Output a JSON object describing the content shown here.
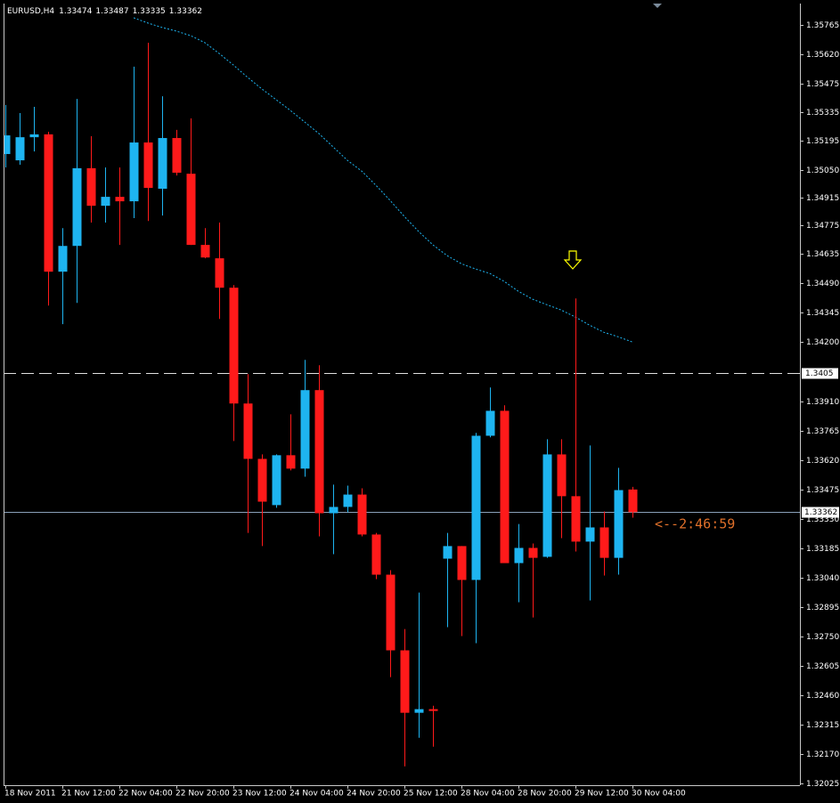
{
  "chart_data": {
    "type": "candlestick",
    "title": "EURUSD,H4",
    "categories": [
      "18 Nov 2011",
      null,
      null,
      null,
      "21 Nov 12:00",
      null,
      null,
      null,
      "22 Nov 04:00",
      null,
      null,
      null,
      "22 Nov 20:00",
      null,
      null,
      null,
      "23 Nov 12:00",
      null,
      null,
      null,
      "24 Nov 04:00",
      null,
      null,
      null,
      "24 Nov 20:00",
      null,
      null,
      null,
      "25 Nov 12:00",
      null,
      null,
      null,
      "28 Nov 04:00",
      null,
      null,
      null,
      "28 Nov 20:00",
      null,
      null,
      null,
      "29 Nov 12:00",
      null,
      null,
      null,
      "30 Nov 04:00"
    ],
    "open": [
      1.35128,
      1.35097,
      1.35211,
      1.35225,
      1.34548,
      1.34675,
      1.35058,
      1.34873,
      1.34917,
      1.34895,
      1.35185,
      1.34957,
      1.35207,
      1.35031,
      1.3468,
      1.34614,
      1.34469,
      1.33898,
      1.33625,
      1.33397,
      1.33643,
      1.33577,
      1.33964,
      1.33357,
      1.33388,
      1.33449,
      1.33252,
      1.33054,
      1.32681,
      1.32373,
      1.32391,
      1.33133,
      1.33195,
      1.33028,
      1.33739,
      1.33862,
      1.33111,
      1.33186,
      1.33142,
      1.33647,
      1.33441,
      1.33217,
      1.33287,
      1.33137,
      1.33474
    ],
    "high": [
      1.3537,
      1.3533,
      1.35361,
      1.35238,
      1.34763,
      1.354,
      1.35216,
      1.35062,
      1.35062,
      1.35559,
      1.35677,
      1.35413,
      1.35247,
      1.35304,
      1.34763,
      1.3479,
      1.34482,
      1.34043,
      1.33647,
      1.33647,
      1.33845,
      1.34113,
      1.34087,
      1.33498,
      1.33493,
      1.3348,
      1.3326,
      1.33076,
      1.32786,
      1.32966,
      1.32408,
      1.3326,
      1.33195,
      1.33753,
      1.33977,
      1.33889,
      1.33304,
      1.33208,
      1.33722,
      1.33722,
      1.34416,
      1.33691,
      1.33366,
      1.33581,
      1.33487
    ],
    "low": [
      1.35062,
      1.35075,
      1.35141,
      1.34381,
      1.34289,
      1.34394,
      1.3479,
      1.3479,
      1.3468,
      1.34812,
      1.34798,
      1.34825,
      1.35022,
      1.3468,
      1.34614,
      1.34315,
      1.33713,
      1.3326,
      1.33195,
      1.33384,
      1.33568,
      1.33537,
      1.33243,
      1.33155,
      1.33362,
      1.33243,
      1.33032,
      1.32549,
      1.32109,
      1.3225,
      1.32206,
      1.32795,
      1.32751,
      1.32716,
      1.33731,
      1.33111,
      1.32918,
      1.32843,
      1.33137,
      1.33234,
      1.33168,
      1.32927,
      1.3305,
      1.33054,
      1.33335
    ],
    "close": [
      1.3522,
      1.35211,
      1.35225,
      1.34548,
      1.34675,
      1.35058,
      1.34873,
      1.34917,
      1.34895,
      1.35185,
      1.34961,
      1.35207,
      1.35036,
      1.3468,
      1.34618,
      1.34469,
      1.33898,
      1.33625,
      1.33414,
      1.33643,
      1.33577,
      1.33964,
      1.33357,
      1.33388,
      1.33449,
      1.33252,
      1.33054,
      1.32681,
      1.32373,
      1.32391,
      1.32382,
      1.33195,
      1.33028,
      1.33739,
      1.33862,
      1.33111,
      1.33186,
      1.33137,
      1.33647,
      1.33441,
      1.33217,
      1.33287,
      1.33137,
      1.33471,
      1.33362
    ],
    "up_color": "#1eb4f0",
    "down_color": "#ff1a1a",
    "moving_average": {
      "color": "#1eb4f0",
      "values": [
        null,
        null,
        null,
        null,
        null,
        null,
        null,
        null,
        null,
        1.358,
        1.35774,
        1.35752,
        1.35734,
        1.35712,
        1.35677,
        1.35624,
        1.35567,
        1.35506,
        1.35449,
        1.35396,
        1.35343,
        1.35286,
        1.35229,
        1.35163,
        1.35097,
        1.35044,
        1.34974,
        1.34899,
        1.3482,
        1.34746,
        1.3468,
        1.34627,
        1.34587,
        1.34561,
        1.34539,
        1.345,
        1.34451,
        1.34412,
        1.34385,
        1.34359,
        1.34324,
        1.34284,
        1.34249,
        1.34227,
        1.34201
      ]
    },
    "level_line": 1.3405,
    "bid_line": 1.33362,
    "countdown": "<--2:46:59",
    "ylim": [
      1.32016,
      1.3587
    ],
    "yticks": [
      1.35765,
      {
        "value": 1.3562,
        "label": "1.35620"
      },
      1.35475,
      1.35335,
      1.35195,
      {
        "value": 1.3505,
        "label": "1.35050"
      },
      1.34915,
      1.34775,
      1.34635,
      {
        "value": 1.3449,
        "label": "1.34490"
      },
      1.34345,
      {
        "value": 1.342,
        "label": "1.34200"
      },
      {
        "value": 1.3391,
        "label": "1.33910"
      },
      1.33765,
      {
        "value": 1.3362,
        "label": "1.33620"
      },
      1.33475,
      {
        "value": 1.3333,
        "label": "1.33330"
      },
      1.33185,
      {
        "value": 1.3304,
        "label": "1.33040"
      },
      1.32895,
      {
        "value": 1.3275,
        "label": "1.32750"
      },
      1.32605,
      {
        "value": 1.3246,
        "label": "1.32460"
      },
      1.32315,
      {
        "value": 1.3217,
        "label": "1.32170"
      },
      1.32025
    ]
  }
}
